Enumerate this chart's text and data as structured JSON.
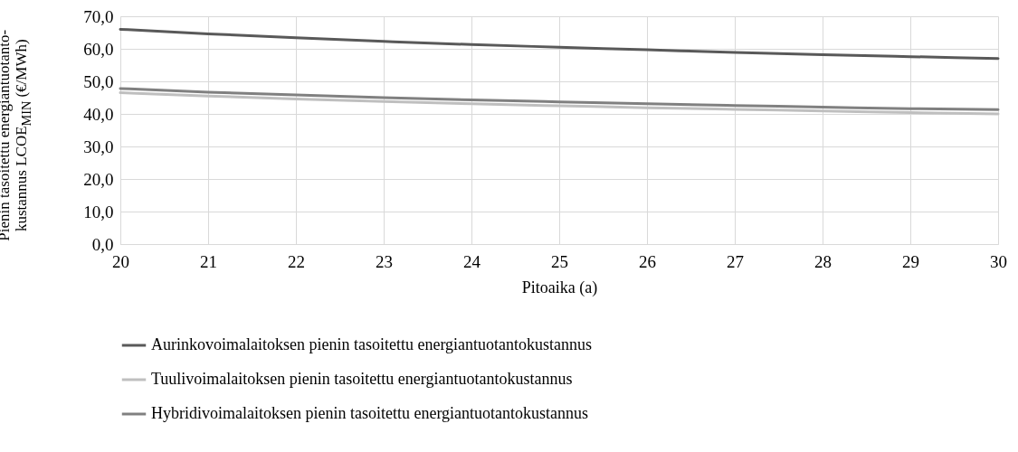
{
  "chart_data": {
    "type": "line",
    "xlabel": "Pitoaika (a)",
    "ylabel": "Pienin tasoitettu energiantuotanto-kustannus LCOE$_{MIN}$ (€/MWh)",
    "x": [
      20,
      21,
      22,
      23,
      24,
      25,
      26,
      27,
      28,
      29,
      30
    ],
    "series": [
      {
        "name": "Aurinkovoimalaitoksen pienin tasoitettu energiantuotantokustannus",
        "color": "#595959",
        "values": [
          66.0,
          64.6,
          63.4,
          62.3,
          61.3,
          60.5,
          59.7,
          58.9,
          58.2,
          57.6,
          57.0
        ]
      },
      {
        "name": "Tuulivoimalaitoksen pienin tasoitettu energiantuotantokustannus",
        "color": "#bfbfbf",
        "values": [
          46.5,
          45.5,
          44.6,
          43.8,
          43.1,
          42.5,
          41.9,
          41.4,
          40.9,
          40.4,
          40.0
        ]
      },
      {
        "name": "Hybridivoimalaitoksen pienin tasoitettu energiantuotantokustannus",
        "color": "#808080",
        "values": [
          47.8,
          46.7,
          45.8,
          45.0,
          44.3,
          43.7,
          43.1,
          42.6,
          42.1,
          41.6,
          41.3
        ]
      }
    ],
    "xlim": [
      20,
      30
    ],
    "xticks": [
      20,
      21,
      22,
      23,
      24,
      25,
      26,
      27,
      28,
      29,
      30
    ],
    "ylim": [
      0,
      70
    ],
    "yticks": [
      {
        "value": 0,
        "label": "0,0"
      },
      {
        "value": 10,
        "label": "10,0"
      },
      {
        "value": 20,
        "label": "20,0"
      },
      {
        "value": 30,
        "label": "30,0"
      },
      {
        "value": 40,
        "label": "40,0"
      },
      {
        "value": 50,
        "label": "50,0"
      },
      {
        "value": 60,
        "label": "60,0"
      },
      {
        "value": 70,
        "label": "70,0"
      }
    ],
    "grid": true,
    "legend": "bottom",
    "marker": "none",
    "line_style": "solid"
  }
}
